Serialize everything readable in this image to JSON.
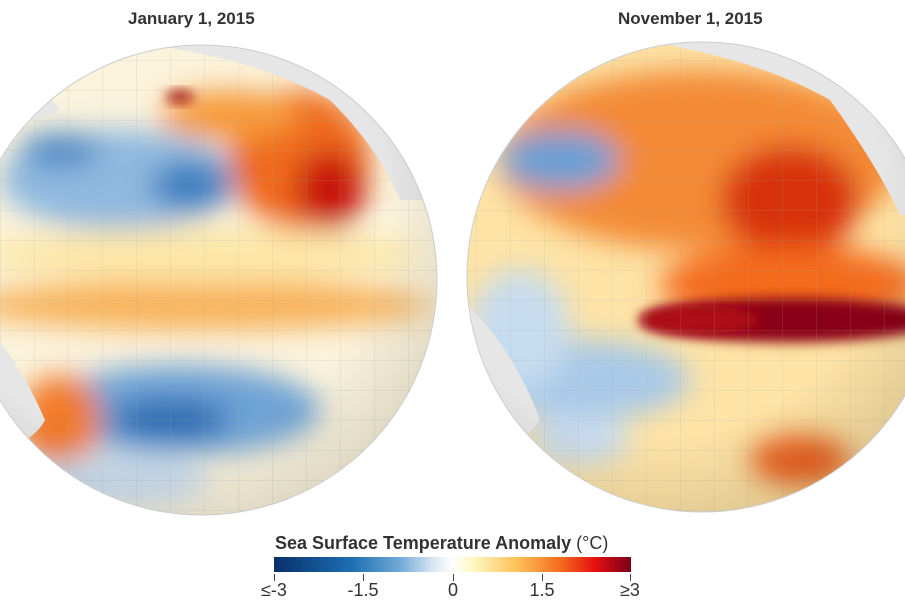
{
  "panels": [
    {
      "title": "January 1, 2015"
    },
    {
      "title": "November 1, 2015"
    }
  ],
  "legend": {
    "title": "Sea Surface Temperature Anomaly",
    "unit": "(°C)",
    "ticks": [
      "≤-3",
      "-1.5",
      "0",
      "1.5",
      "≥3"
    ],
    "colors": [
      "#08306b",
      "#1f6fb4",
      "#ffffff",
      "#fdc25a",
      "#e50f0f",
      "#7a0019"
    ]
  }
}
